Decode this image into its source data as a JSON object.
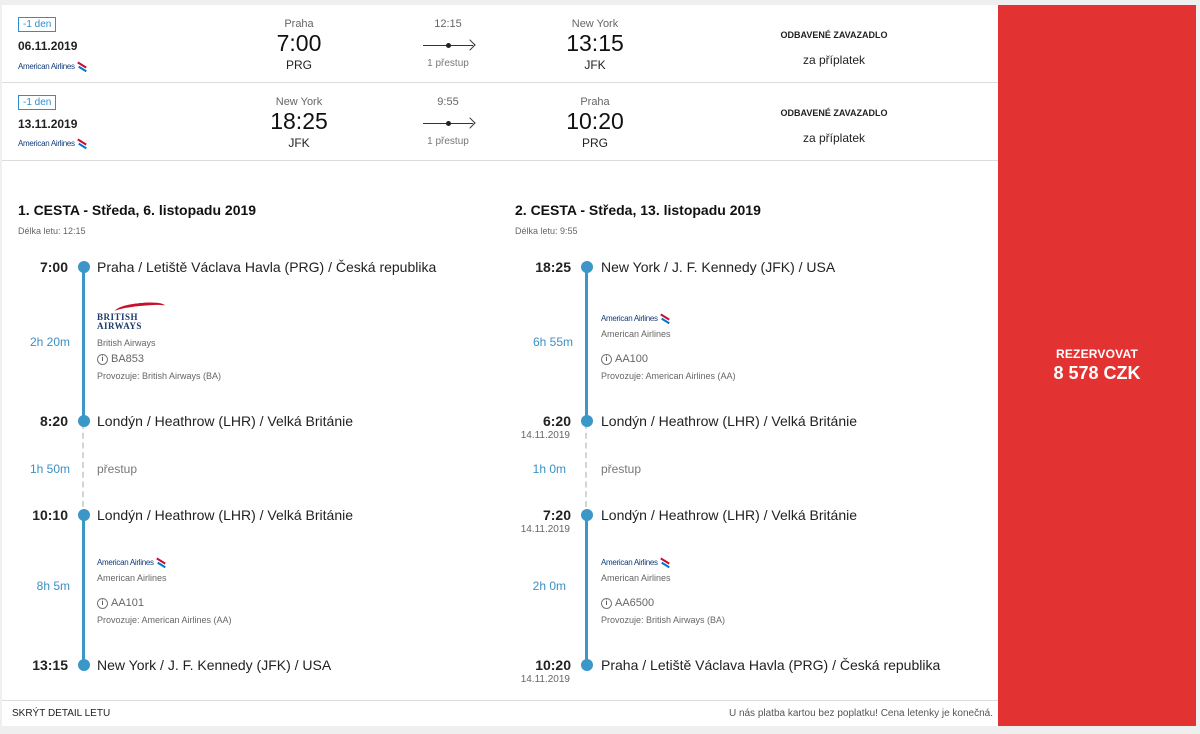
{
  "outbound": {
    "badge": "-1 den",
    "date": "06.11.2019",
    "airline": "American Airlines",
    "from_city": "Praha",
    "from_time": "7:00",
    "from_code": "PRG",
    "duration": "12:15",
    "stops": "1 přestup",
    "to_city": "New York",
    "to_time": "13:15",
    "to_code": "JFK",
    "baggage_title": "ODBAVENÉ ZAVAZADLO",
    "baggage_note": "za příplatek"
  },
  "inbound": {
    "badge": "-1 den",
    "date": "13.11.2019",
    "airline": "American Airlines",
    "from_city": "New York",
    "from_time": "18:25",
    "from_code": "JFK",
    "duration": "9:55",
    "stops": "1 přestup",
    "to_city": "Praha",
    "to_time": "10:20",
    "to_code": "PRG",
    "baggage_title": "ODBAVENÉ ZAVAZADLO",
    "baggage_note": "za příplatek"
  },
  "leg1": {
    "title": "1. CESTA - Středa, 6. listopadu 2019",
    "duration_label": "Délka letu: 12:15",
    "stop1_time": "7:00",
    "stop1_place": "Praha / Letiště Václava Havla (PRG) / Česká republika",
    "seg1_duration": "2h 20m",
    "seg1_logo_word1": "BRITISH",
    "seg1_logo_word2": "AIRWAYS",
    "seg1_airline": "British Airways",
    "seg1_flight": "BA853",
    "seg1_operator": "Provozuje: British Airways (BA)",
    "stop2_time": "8:20",
    "stop2_place": "Londýn / Heathrow (LHR) / Velká Británie",
    "transfer_duration": "1h 50m",
    "transfer_label": "přestup",
    "stop3_time": "10:10",
    "stop3_place": "Londýn / Heathrow (LHR) / Velká Británie",
    "seg2_duration": "8h 5m",
    "seg2_logo": "American Airlines",
    "seg2_airline": "American Airlines",
    "seg2_flight": "AA101",
    "seg2_operator": "Provozuje: American Airlines (AA)",
    "stop4_time": "13:15",
    "stop4_place": "New York / J. F. Kennedy (JFK) / USA"
  },
  "leg2": {
    "title": "2. CESTA - Středa, 13. listopadu 2019",
    "duration_label": "Délka letu: 9:55",
    "stop1_time": "18:25",
    "stop1_place": "New York / J. F. Kennedy (JFK) / USA",
    "seg1_duration": "6h 55m",
    "seg1_logo": "American Airlines",
    "seg1_airline": "American Airlines",
    "seg1_flight": "AA100",
    "seg1_operator": "Provozuje: American Airlines (AA)",
    "stop2_time": "6:20",
    "stop2_date": "14.11.2019",
    "stop2_place": "Londýn / Heathrow (LHR) / Velká Británie",
    "transfer_duration": "1h 0m",
    "transfer_label": "přestup",
    "stop3_time": "7:20",
    "stop3_date": "14.11.2019",
    "stop3_place": "Londýn / Heathrow (LHR) / Velká Británie",
    "seg2_duration": "2h 0m",
    "seg2_logo": "American Airlines",
    "seg2_airline": "American Airlines",
    "seg2_flight": "AA6500",
    "seg2_operator": "Provozuje: British Airways (BA)",
    "stop4_time": "10:20",
    "stop4_date": "14.11.2019",
    "stop4_place": "Praha / Letiště Václava Havla (PRG) / Česká republika"
  },
  "book": {
    "label": "REZERVOVAT",
    "price": "8 578 CZK"
  },
  "footer": {
    "hide_label": "SKRÝT DETAIL LETU",
    "note": "U nás platba kartou bez poplatku! Cena letenky je konečná."
  },
  "colors": {
    "accent": "#3c97c9",
    "book": "#e33232"
  }
}
